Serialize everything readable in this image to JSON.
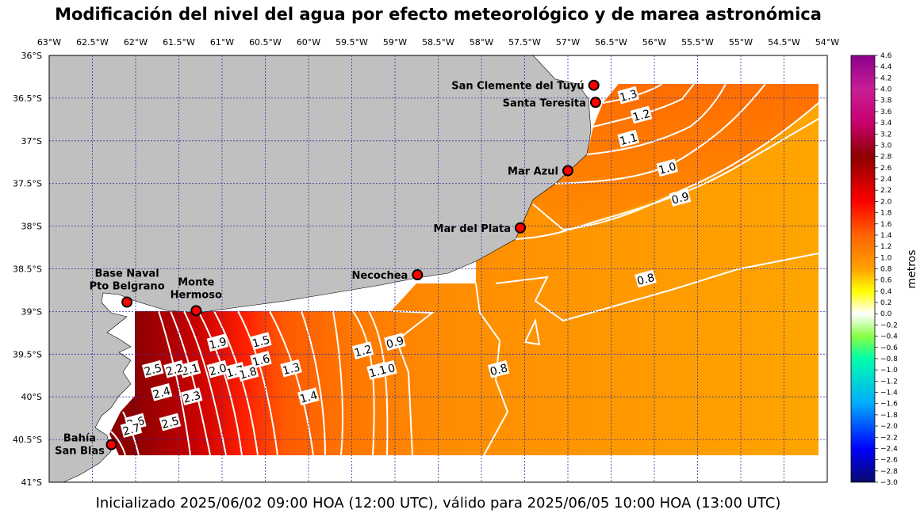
{
  "title": "Modificación del nivel del agua por efecto meteorológico y de marea astronómica",
  "footer": "Inicializado 2025/06/02 09:00 HOA (12:00 UTC), válido para 2025/06/05 10:00 HOA (13:00 UTC)",
  "longitudes": [
    "63°W",
    "62.5°W",
    "62°W",
    "61.5°W",
    "61°W",
    "60.5°W",
    "60°W",
    "59.5°W",
    "59°W",
    "58.5°W",
    "58°W",
    "57.5°W",
    "57°W",
    "56.5°W",
    "56°W",
    "55.5°W",
    "55°W",
    "54.5°W",
    "54°W"
  ],
  "latitudes": [
    "36°S",
    "36.5°S",
    "37°S",
    "37.5°S",
    "38°S",
    "38.5°S",
    "39°S",
    "39.5°S",
    "40°S",
    "40.5°S",
    "41°S"
  ],
  "stations": [
    {
      "name": "San Clemente del Tuyú",
      "lon": -56.7,
      "lat": -36.35
    },
    {
      "name": "Santa Teresita",
      "lon": -56.68,
      "lat": -36.55
    },
    {
      "name": "Mar Azul",
      "lon": -57.0,
      "lat": -37.35
    },
    {
      "name": "Mar del Plata",
      "lon": -57.55,
      "lat": -38.02
    },
    {
      "name": "Necochea",
      "lon": -58.74,
      "lat": -38.57
    },
    {
      "name": "Base Naval Pto Belgrano",
      "lines": [
        "Base Naval",
        "Pto Belgrano"
      ],
      "lon": -62.1,
      "lat": -38.89
    },
    {
      "name": "Monte Hermoso",
      "lines": [
        "Monte",
        "Hermoso"
      ],
      "lon": -61.3,
      "lat": -38.99
    },
    {
      "name": "Bahía San Blas",
      "lines": [
        "Bahía",
        "San Blas"
      ],
      "lon": -62.28,
      "lat": -40.56
    }
  ],
  "contour_labels": [
    {
      "text": "1.3",
      "lon": -56.3,
      "lat": -36.47
    },
    {
      "text": "1.2",
      "lon": -56.15,
      "lat": -36.7
    },
    {
      "text": "1.1",
      "lon": -56.3,
      "lat": -36.98
    },
    {
      "text": "1.0",
      "lon": -55.85,
      "lat": -37.32
    },
    {
      "text": "0.9",
      "lon": -55.7,
      "lat": -37.67
    },
    {
      "text": "0.8",
      "lon": -56.1,
      "lat": -38.62
    },
    {
      "text": "0.8",
      "lon": -57.8,
      "lat": -39.68
    },
    {
      "text": "0.9",
      "lon": -59.0,
      "lat": -39.36
    },
    {
      "text": "1.0",
      "lon": -59.1,
      "lat": -39.68
    },
    {
      "text": "1.1",
      "lon": -59.2,
      "lat": -39.7
    },
    {
      "text": "1.2",
      "lon": -59.37,
      "lat": -39.46
    },
    {
      "text": "1.3",
      "lon": -60.2,
      "lat": -39.67
    },
    {
      "text": "1.4",
      "lon": -60.0,
      "lat": -40.0
    },
    {
      "text": "1.5",
      "lon": -60.55,
      "lat": -39.35
    },
    {
      "text": "1.6",
      "lon": -60.55,
      "lat": -39.57
    },
    {
      "text": "1.7",
      "lon": -60.85,
      "lat": -39.7
    },
    {
      "text": "1.8",
      "lon": -60.7,
      "lat": -39.72
    },
    {
      "text": "1.9",
      "lon": -61.05,
      "lat": -39.37
    },
    {
      "text": "2.0",
      "lon": -61.05,
      "lat": -39.68
    },
    {
      "text": "2.1",
      "lon": -61.37,
      "lat": -39.68
    },
    {
      "text": "2.2",
      "lon": -61.55,
      "lat": -39.68
    },
    {
      "text": "2.3",
      "lon": -61.35,
      "lat": -40.0
    },
    {
      "text": "2.4",
      "lon": -61.7,
      "lat": -39.95
    },
    {
      "text": "2.5",
      "lon": -61.8,
      "lat": -39.68
    },
    {
      "text": "2.5",
      "lon": -61.6,
      "lat": -40.3
    },
    {
      "text": "2.6",
      "lon": -62.0,
      "lat": -40.3
    },
    {
      "text": "2.7",
      "lon": -62.05,
      "lat": -40.38
    }
  ],
  "colorbar": {
    "label": "metros",
    "min": -3.0,
    "max": 4.6,
    "step": 0.2,
    "stops": [
      {
        "v": -3.0,
        "c": "#0a0a6e"
      },
      {
        "v": -2.4,
        "c": "#0000ff"
      },
      {
        "v": -1.6,
        "c": "#00aaff"
      },
      {
        "v": -0.8,
        "c": "#00ffaa"
      },
      {
        "v": -0.4,
        "c": "#88ff44"
      },
      {
        "v": 0.0,
        "c": "#ffffff"
      },
      {
        "v": 0.4,
        "c": "#ffff00"
      },
      {
        "v": 0.8,
        "c": "#ffa000"
      },
      {
        "v": 1.4,
        "c": "#ff6400"
      },
      {
        "v": 2.0,
        "c": "#ff0000"
      },
      {
        "v": 2.8,
        "c": "#8c0000"
      },
      {
        "v": 3.4,
        "c": "#c8006e"
      },
      {
        "v": 4.0,
        "c": "#c81e96"
      },
      {
        "v": 4.6,
        "c": "#8c008c"
      }
    ]
  },
  "colors": {
    "land": "#c0c0c0",
    "grid": "#3232a0",
    "contour": "#ffffff",
    "marker": "#ff0000"
  }
}
